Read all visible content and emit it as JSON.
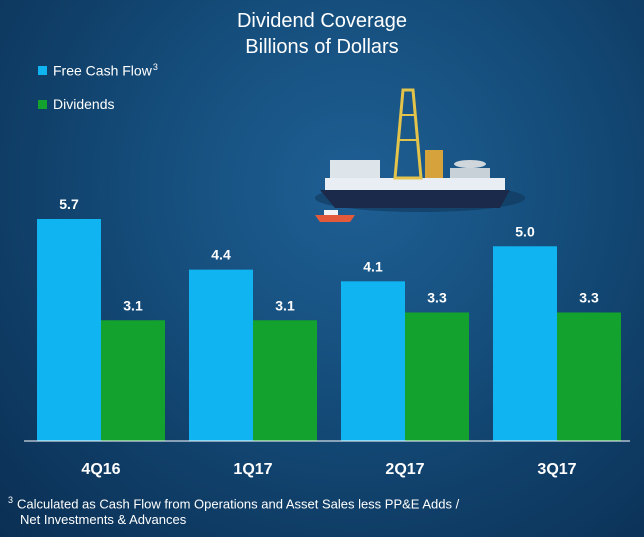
{
  "colors": {
    "free_cash_flow": "#0fb4f0",
    "dividends": "#13a22e",
    "axis": "#ffffff"
  },
  "chart_data": {
    "type": "bar",
    "title": "Dividend Coverage",
    "subtitle": "Billions of Dollars",
    "categories": [
      "4Q16",
      "1Q17",
      "2Q17",
      "3Q17"
    ],
    "series": [
      {
        "name": "Free Cash Flow",
        "name_superscript": "3",
        "values": [
          5.7,
          4.4,
          4.1,
          5.0
        ],
        "labels": [
          "5.7",
          "4.4",
          "4.1",
          "5.0"
        ]
      },
      {
        "name": "Dividends",
        "values": [
          3.1,
          3.1,
          3.3,
          3.3
        ],
        "labels": [
          "3.1",
          "3.1",
          "3.3",
          "3.3"
        ]
      }
    ],
    "ylim": [
      0,
      5.7
    ],
    "grid": false,
    "legend_position": "top-left"
  },
  "footnote": {
    "marker": "3",
    "line1": "Calculated as Cash Flow from Operations and Asset Sales less PP&E Adds /",
    "line2": "Net Investments & Advances"
  }
}
